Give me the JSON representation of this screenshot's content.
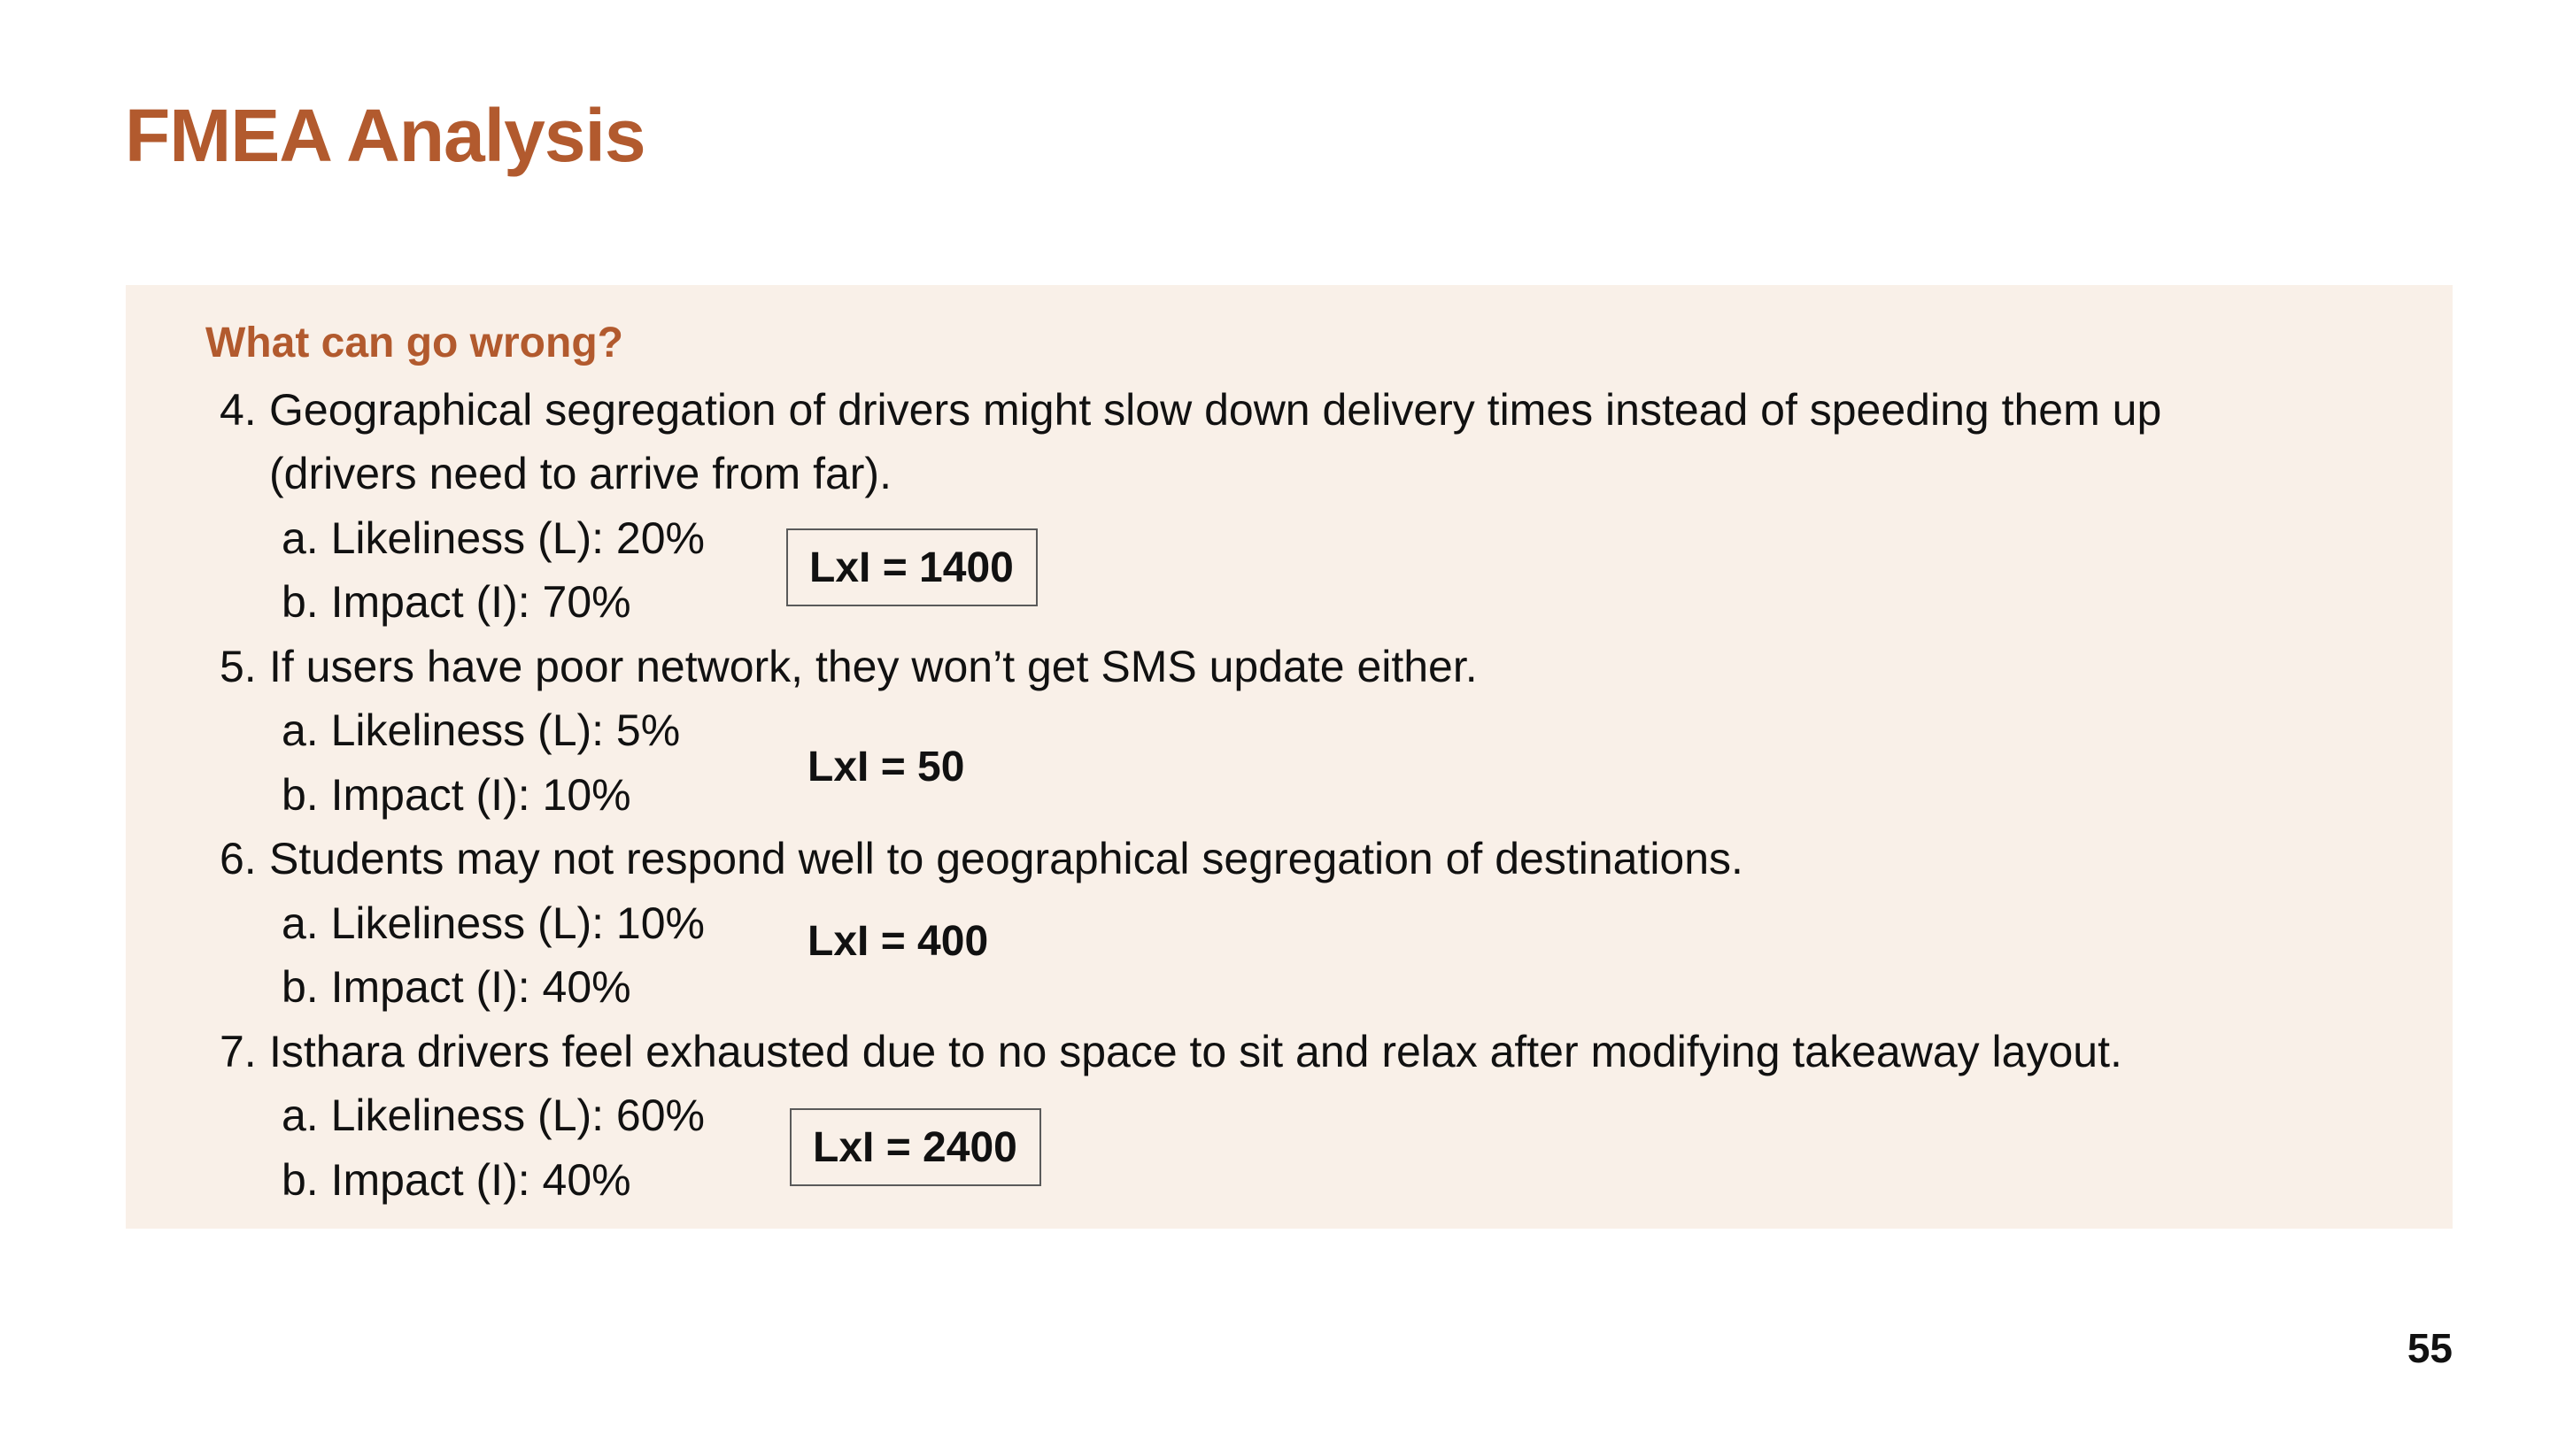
{
  "slide": {
    "title": "FMEA Analysis",
    "section_heading": "What can go wrong?",
    "page_number": "55"
  },
  "items": [
    {
      "number": "4.",
      "text_line1": "Geographical segregation of drivers might slow down delivery times instead of speeding them up",
      "text_line2": "(drivers need to arrive from far).",
      "likeliness": "a. Likeliness (L): 20%",
      "impact": "b. Impact (I): 70%",
      "score": "LxI = 1400"
    },
    {
      "number": "5.",
      "text_line1": "If users have poor network, they won’t get SMS update either.",
      "likeliness": "a. Likeliness (L): 5%",
      "impact": "b. Impact (I): 10%",
      "score": "LxI = 50"
    },
    {
      "number": "6.",
      "text_line1": "Students may not respond well to geographical segregation of destinations.",
      "likeliness": "a. Likeliness (L): 10%",
      "impact": "b. Impact (I): 40%",
      "score": "LxI = 400"
    },
    {
      "number": "7.",
      "text_line1": "Isthara drivers feel exhausted due to no space to sit and relax after modifying takeaway layout.",
      "likeliness": "a. Likeliness (L): 60%",
      "impact": "b. Impact (I): 40%",
      "score": "LxI = 2400"
    }
  ],
  "colors": {
    "accent": "#b25a2e",
    "panel_background": "#f9f0e8",
    "text": "#111111"
  }
}
